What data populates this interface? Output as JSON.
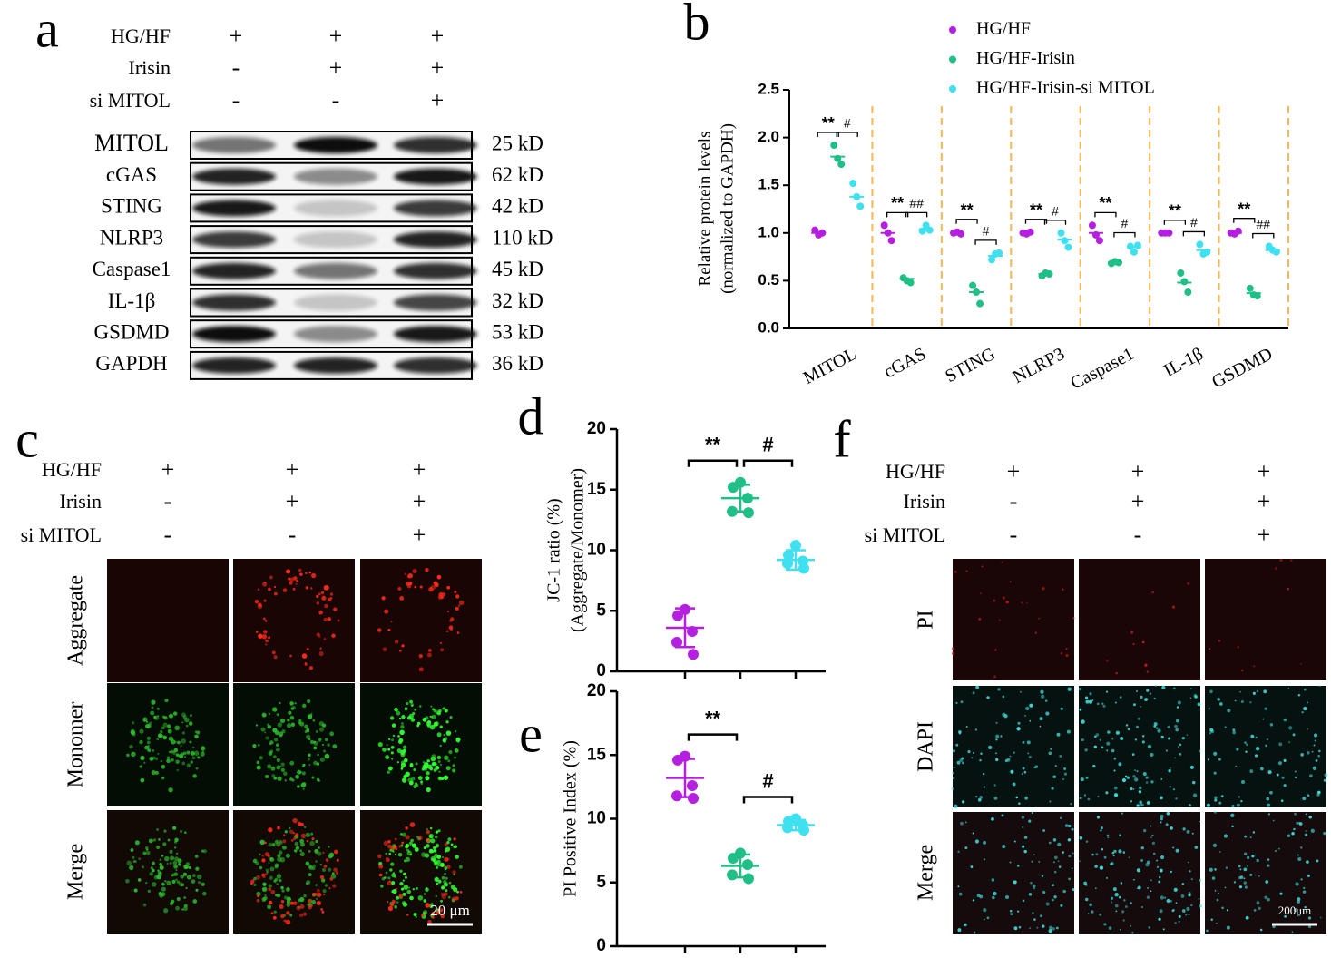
{
  "panel_labels": [
    "a",
    "b",
    "c",
    "d",
    "e",
    "f"
  ],
  "blot": {
    "conditions": [
      {
        "label": "HG/HF",
        "marks": [
          "+",
          "+",
          "+"
        ]
      },
      {
        "label": "Irisin",
        "marks": [
          "-",
          "+",
          "+"
        ]
      },
      {
        "label": "si MITOL",
        "marks": [
          "-",
          "-",
          "+"
        ]
      }
    ],
    "bands": [
      {
        "protein": "MITOL",
        "size": "25 kD"
      },
      {
        "protein": "cGAS",
        "size": "62 kD"
      },
      {
        "protein": "STING",
        "size": "42 kD"
      },
      {
        "protein": "NLRP3",
        "size": "110 kD"
      },
      {
        "protein": "Caspase1",
        "size": "45 kD"
      },
      {
        "protein": "IL-1β",
        "size": "32 kD"
      },
      {
        "protein": "GSDMD",
        "size": "53 kD"
      },
      {
        "protein": "GAPDH",
        "size": "36 kD"
      }
    ]
  },
  "chart_data": [
    {
      "type": "dotplot",
      "ylabel": [
        "Relative protein levels",
        "(normalized to GAPDH)"
      ],
      "categories": [
        "MITOL",
        "cGAS",
        "STING",
        "NLRP3",
        "Caspase1",
        "IL-1β",
        "GSDMD"
      ],
      "ylim": [
        0,
        2.5
      ],
      "yticks": [
        {
          "value": 0,
          "label": "0.0"
        },
        0.5,
        {
          "value": 1,
          "label": "1.0"
        },
        1.5,
        {
          "value": 2,
          "label": "2.0"
        },
        2.5
      ],
      "series": [
        {
          "name": "HG/HF",
          "color": "#b51fe0",
          "values": [
            1.0,
            1.0,
            1.0,
            1.0,
            1.0,
            1.0,
            1.0
          ],
          "points": [
            [
              1.03,
              0.98,
              1.0
            ],
            [
              1.08,
              1.0,
              0.92
            ],
            [
              1.0,
              1.01,
              0.99
            ],
            [
              1.0,
              0.99,
              1.01
            ],
            [
              1.08,
              0.98,
              0.92
            ],
            [
              1.0,
              1.0,
              1.0
            ],
            [
              1.0,
              0.99,
              1.02
            ]
          ]
        },
        {
          "name": "HG/HF-Irisin",
          "color": "#1fbf86",
          "values": [
            1.8,
            0.52,
            0.38,
            0.57,
            0.69,
            0.48,
            0.37
          ],
          "points": [
            [
              1.92,
              1.78,
              1.72
            ],
            [
              0.53,
              0.5,
              0.48
            ],
            [
              0.45,
              0.38,
              0.26
            ],
            [
              0.55,
              0.58,
              0.57
            ],
            [
              0.68,
              0.7,
              0.69
            ],
            [
              0.58,
              0.49,
              0.38
            ],
            [
              0.42,
              0.35,
              0.34
            ]
          ]
        },
        {
          "name": "HG/HF-Irisin-si MITOL",
          "color": "#3fe0f0",
          "values": [
            1.38,
            1.04,
            0.76,
            0.93,
            0.85,
            0.82,
            0.82
          ],
          "points": [
            [
              1.52,
              1.38,
              1.28
            ],
            [
              1.02,
              1.08,
              1.03
            ],
            [
              0.72,
              0.78,
              0.79
            ],
            [
              1.0,
              0.92,
              0.85
            ],
            [
              0.86,
              0.8,
              0.87
            ],
            [
              0.88,
              0.78,
              0.8
            ],
            [
              0.86,
              0.82,
              0.8
            ]
          ]
        }
      ],
      "significance": [
        [
          "**",
          "#"
        ],
        [
          "**",
          "##"
        ],
        [
          "**",
          "#"
        ],
        [
          "**",
          "#"
        ],
        [
          "**",
          "#"
        ],
        [
          "**",
          "#"
        ],
        [
          "**",
          "##"
        ]
      ]
    },
    {
      "type": "dotplot-single",
      "ylabel": [
        "JC-1 ratio (%)",
        "(Aggregate/Monomer)"
      ],
      "categories": [
        null,
        null,
        null
      ],
      "colors": [
        "#b51fe0",
        "#1fbf86",
        "#3fe0f0"
      ],
      "values": [
        3.6,
        14.3,
        9.2
      ],
      "errors": [
        1.6,
        1.1,
        0.8
      ],
      "points": [
        [
          5.1,
          4.6,
          3.3,
          2.4,
          1.4
        ],
        [
          15.6,
          15.2,
          14.3,
          13.2,
          13.1
        ],
        [
          10.4,
          9.6,
          9.1,
          8.9,
          8.5
        ]
      ],
      "ylim": [
        0,
        20
      ],
      "yticks": [
        0,
        5,
        10,
        15,
        20
      ],
      "significance": [
        "**",
        "#"
      ]
    },
    {
      "type": "dotplot-single",
      "ylabel": [
        "PI Positive Index (%)"
      ],
      "categories": [
        null,
        null,
        null
      ],
      "colors": [
        "#b51fe0",
        "#1fbf86",
        "#3fe0f0"
      ],
      "values": [
        13.2,
        6.3,
        9.5
      ],
      "errors": [
        1.5,
        0.9,
        0.4
      ],
      "points": [
        [
          14.9,
          14.6,
          12.6,
          11.8,
          11.6
        ],
        [
          7.3,
          6.9,
          6.4,
          5.6,
          5.3
        ],
        [
          10.0,
          9.8,
          9.5,
          9.3,
          9.1
        ]
      ],
      "ylim": [
        0,
        20
      ],
      "yticks": [
        0,
        5,
        10,
        15,
        20
      ],
      "significance": [
        "**",
        "#"
      ]
    }
  ],
  "microscopy": [
    {
      "conditions": [
        {
          "label": "HG/HF",
          "marks": [
            "+",
            "+",
            "+"
          ]
        },
        {
          "label": "Irisin",
          "marks": [
            "-",
            "+",
            "+"
          ]
        },
        {
          "label": "si MITOL",
          "marks": [
            "-",
            "-",
            "+"
          ]
        }
      ],
      "rows": [
        "Aggregate",
        "Monomer",
        "Merge"
      ],
      "scale_bar": "20 μm"
    },
    {
      "conditions": [
        {
          "label": "HG/HF",
          "marks": [
            "+",
            "+",
            "+"
          ]
        },
        {
          "label": "Irisin",
          "marks": [
            "-",
            "+",
            "+"
          ]
        },
        {
          "label": "si MITOL",
          "marks": [
            "-",
            "-",
            "+"
          ]
        }
      ],
      "rows": [
        "PI",
        "DAPI",
        "Merge"
      ],
      "scale_bar": "200μm"
    }
  ]
}
